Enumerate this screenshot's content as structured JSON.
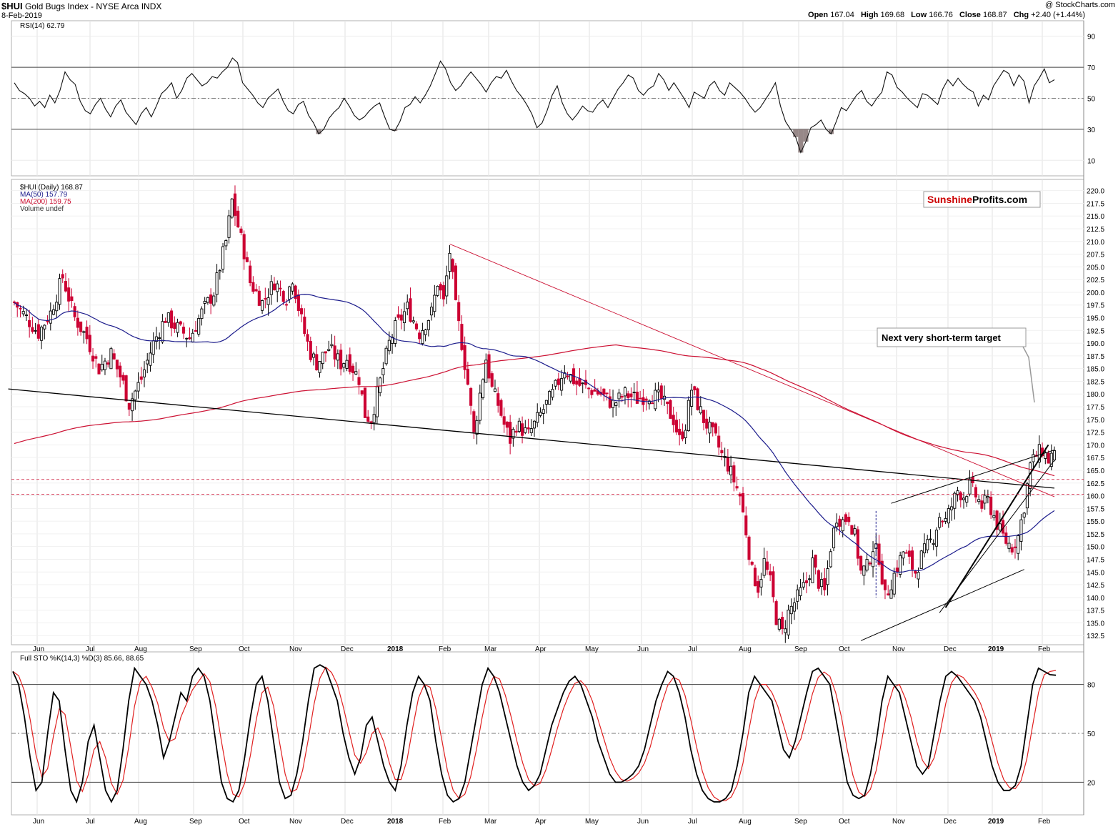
{
  "header": {
    "symbol": "$HUI",
    "name": "Gold Bugs Index - NYSE Arca INDX",
    "date": "8-Feb-2019",
    "credit": "@ StockCharts.com",
    "open_label": "Open",
    "open": "167.04",
    "high_label": "High",
    "high": "169.68",
    "low_label": "Low",
    "low": "166.76",
    "close_label": "Close",
    "close": "168.87",
    "chg_label": "Chg",
    "chg": "+2.40 (+1.44%)"
  },
  "brand": {
    "part1": "Sunshine",
    "part2": "Profits.com",
    "part1_color": "#cc0000"
  },
  "annotation": {
    "text": "Next very short-term target"
  },
  "colors": {
    "up": "#000000",
    "down": "#cc0033",
    "ma50": "#1c1c8c",
    "ma200": "#cc1133",
    "rsi_fill": "#8c7b7b",
    "sto_d": "#e02020"
  },
  "chart_data": [
    {
      "panel": "rsi",
      "type": "line",
      "title": "RSI(14) 62.79",
      "ylim": [
        0,
        100
      ],
      "yticks": [
        10,
        30,
        50,
        70,
        90
      ],
      "reference_lines": [
        30,
        50,
        70
      ],
      "last_value": 62.79,
      "x_start": "2017-05-15",
      "x_end": "2019-02-08",
      "values": [
        60,
        55,
        53,
        50,
        45,
        48,
        44,
        52,
        47,
        55,
        67,
        62,
        59,
        48,
        42,
        40,
        46,
        50,
        43,
        38,
        45,
        49,
        41,
        37,
        33,
        40,
        44,
        38,
        45,
        53,
        56,
        60,
        50,
        55,
        63,
        66,
        62,
        58,
        60,
        64,
        63,
        67,
        70,
        76,
        73,
        60,
        56,
        52,
        47,
        44,
        50,
        53,
        56,
        48,
        42,
        40,
        46,
        48,
        39,
        34,
        27,
        30,
        37,
        41,
        44,
        50,
        45,
        39,
        36,
        38,
        42,
        45,
        47,
        38,
        30,
        29,
        35,
        44,
        46,
        51,
        47,
        52,
        58,
        66,
        74,
        69,
        60,
        55,
        58,
        63,
        67,
        63,
        59,
        54,
        60,
        64,
        63,
        68,
        61,
        55,
        51,
        46,
        40,
        31,
        34,
        42,
        52,
        58,
        47,
        40,
        36,
        40,
        45,
        42,
        41,
        46,
        49,
        44,
        50,
        56,
        60,
        65,
        63,
        55,
        52,
        56,
        58,
        66,
        62,
        55,
        60,
        55,
        50,
        44,
        54,
        52,
        50,
        58,
        61,
        55,
        52,
        60,
        57,
        54,
        50,
        45,
        41,
        44,
        49,
        54,
        60,
        45,
        35,
        30,
        25,
        15,
        22,
        31,
        33,
        36,
        30,
        27,
        35,
        44,
        42,
        47,
        52,
        55,
        48,
        45,
        50,
        54,
        67,
        65,
        57,
        54,
        50,
        47,
        44,
        53,
        52,
        49,
        46,
        56,
        62,
        58,
        63,
        59,
        56,
        54,
        45,
        52,
        49,
        58,
        63,
        68,
        66,
        58,
        65,
        61,
        47,
        58,
        63,
        69,
        60,
        62
      ]
    },
    {
      "panel": "price",
      "type": "candlestick",
      "title": "$HUI (Daily) 168.87",
      "series": [
        {
          "name": "MA(50) 157.79",
          "color": "#1c1c8c",
          "last_value": 157.79
        },
        {
          "name": "MA(200) 159.75",
          "color": "#cc1133",
          "last_value": 159.75
        }
      ],
      "legend_extra": "Volume undef",
      "ylim": [
        130.7,
        222.2
      ],
      "yticks": [
        132.5,
        135.0,
        137.5,
        140.0,
        142.5,
        145.0,
        147.5,
        150.0,
        152.5,
        155.0,
        157.5,
        160.0,
        162.5,
        165.0,
        167.5,
        170.0,
        172.5,
        175.0,
        177.5,
        180.0,
        182.5,
        185.0,
        187.5,
        190.0,
        192.5,
        195.0,
        197.5,
        200.0,
        202.5,
        205.0,
        207.5,
        210.0,
        212.5,
        215.0,
        217.5,
        220.0
      ],
      "x_months": [
        "Jun",
        "Jul",
        "Aug",
        "Sep",
        "Oct",
        "Nov",
        "Dec",
        "2018",
        "Feb",
        "Mar",
        "Apr",
        "May",
        "Jun",
        "Jul",
        "Aug",
        "Sep",
        "Oct",
        "Nov",
        "Dec",
        "2019",
        "Feb"
      ],
      "close_anchors": [
        [
          0,
          198
        ],
        [
          4,
          195
        ],
        [
          8,
          192
        ],
        [
          12,
          196
        ],
        [
          16,
          203
        ],
        [
          20,
          195
        ],
        [
          24,
          191
        ],
        [
          28,
          185
        ],
        [
          32,
          188
        ],
        [
          36,
          182
        ],
        [
          38,
          178
        ],
        [
          42,
          183
        ],
        [
          46,
          190
        ],
        [
          50,
          195
        ],
        [
          54,
          193
        ],
        [
          58,
          191
        ],
        [
          62,
          196
        ],
        [
          66,
          200
        ],
        [
          68,
          205
        ],
        [
          70,
          210
        ],
        [
          72,
          218
        ],
        [
          74,
          213
        ],
        [
          76,
          208
        ],
        [
          78,
          202
        ],
        [
          82,
          198
        ],
        [
          86,
          202
        ],
        [
          90,
          199
        ],
        [
          92,
          203
        ],
        [
          94,
          197
        ],
        [
          96,
          192
        ],
        [
          98,
          188
        ],
        [
          100,
          186
        ],
        [
          104,
          189
        ],
        [
          108,
          186
        ],
        [
          110,
          187
        ],
        [
          114,
          183
        ],
        [
          116,
          176
        ],
        [
          118,
          175
        ],
        [
          120,
          180
        ],
        [
          122,
          185
        ],
        [
          124,
          190
        ],
        [
          126,
          193
        ],
        [
          130,
          197
        ],
        [
          134,
          192
        ],
        [
          138,
          196
        ],
        [
          140,
          202
        ],
        [
          142,
          198
        ],
        [
          144,
          208
        ],
        [
          146,
          197
        ],
        [
          148,
          190
        ],
        [
          150,
          182
        ],
        [
          152,
          172
        ],
        [
          154,
          180
        ],
        [
          156,
          187
        ],
        [
          158,
          181
        ],
        [
          160,
          178
        ],
        [
          162,
          174
        ],
        [
          164,
          171
        ],
        [
          166,
          174
        ],
        [
          170,
          172
        ],
        [
          174,
          176
        ],
        [
          178,
          180
        ],
        [
          182,
          185
        ],
        [
          186,
          182
        ],
        [
          190,
          181
        ],
        [
          194,
          180
        ],
        [
          198,
          178
        ],
        [
          202,
          180
        ],
        [
          206,
          179
        ],
        [
          210,
          180
        ],
        [
          214,
          179
        ],
        [
          216,
          177
        ],
        [
          218,
          175
        ],
        [
          220,
          171
        ],
        [
          222,
          174
        ],
        [
          224,
          181
        ],
        [
          226,
          178
        ],
        [
          228,
          175
        ],
        [
          230,
          173
        ],
        [
          232,
          171
        ],
        [
          234,
          168
        ],
        [
          236,
          166
        ],
        [
          238,
          163
        ],
        [
          240,
          160
        ],
        [
          242,
          153
        ],
        [
          244,
          145
        ],
        [
          246,
          142
        ],
        [
          248,
          147
        ],
        [
          250,
          143
        ],
        [
          252,
          136
        ],
        [
          254,
          133
        ],
        [
          256,
          137
        ],
        [
          258,
          139
        ],
        [
          260,
          141
        ],
        [
          262,
          143
        ],
        [
          264,
          147
        ],
        [
          266,
          143
        ],
        [
          268,
          141
        ],
        [
          270,
          150
        ],
        [
          272,
          156
        ],
        [
          274,
          155
        ],
        [
          276,
          156
        ],
        [
          278,
          152
        ],
        [
          280,
          145
        ],
        [
          282,
          146
        ],
        [
          284,
          150
        ],
        [
          286,
          148
        ],
        [
          288,
          140
        ],
        [
          290,
          143
        ],
        [
          292,
          146
        ],
        [
          294,
          149
        ],
        [
          296,
          147
        ],
        [
          298,
          145
        ],
        [
          300,
          148
        ],
        [
          302,
          150
        ],
        [
          304,
          152
        ],
        [
          306,
          156
        ],
        [
          308,
          155
        ],
        [
          310,
          158
        ],
        [
          312,
          161
        ],
        [
          314,
          160
        ],
        [
          316,
          162
        ],
        [
          318,
          160
        ],
        [
          320,
          158
        ],
        [
          322,
          159
        ],
        [
          324,
          156
        ],
        [
          326,
          153
        ],
        [
          328,
          151
        ],
        [
          330,
          150
        ],
        [
          332,
          152
        ],
        [
          334,
          158
        ],
        [
          336,
          166
        ],
        [
          338,
          168
        ],
        [
          340,
          169
        ],
        [
          342,
          167
        ],
        [
          344,
          168.87
        ]
      ]
    },
    {
      "panel": "stochastic",
      "type": "line",
      "title": "Full STO %K(14,3) %D(3) 85.66, 88.65",
      "ylim": [
        0,
        100
      ],
      "yticks": [
        20,
        50,
        80
      ],
      "reference_lines": [
        20,
        50,
        80
      ],
      "series": [
        {
          "name": "%K",
          "color": "#000000",
          "last_value": 85.66
        },
        {
          "name": "%D",
          "color": "#e02020",
          "last_value": 88.65
        }
      ],
      "values_k": [
        88,
        80,
        60,
        35,
        15,
        20,
        50,
        75,
        70,
        40,
        15,
        8,
        20,
        45,
        55,
        35,
        15,
        8,
        15,
        40,
        70,
        90,
        85,
        80,
        70,
        55,
        35,
        45,
        60,
        75,
        70,
        85,
        90,
        85,
        70,
        45,
        20,
        10,
        8,
        15,
        35,
        60,
        80,
        85,
        70,
        45,
        20,
        10,
        12,
        25,
        45,
        70,
        90,
        92,
        90,
        80,
        70,
        50,
        35,
        25,
        35,
        55,
        60,
        45,
        30,
        20,
        15,
        30,
        55,
        75,
        85,
        80,
        70,
        45,
        25,
        12,
        8,
        10,
        20,
        40,
        60,
        80,
        90,
        85,
        75,
        60,
        45,
        30,
        20,
        15,
        18,
        25,
        40,
        55,
        65,
        75,
        82,
        85,
        80,
        70,
        60,
        45,
        35,
        25,
        20,
        20,
        22,
        25,
        30,
        40,
        55,
        70,
        80,
        88,
        85,
        75,
        60,
        40,
        25,
        15,
        10,
        8,
        8,
        10,
        15,
        30,
        50,
        75,
        85,
        80,
        75,
        70,
        55,
        40,
        35,
        45,
        60,
        75,
        88,
        90,
        85,
        80,
        60,
        40,
        20,
        12,
        10,
        12,
        25,
        45,
        70,
        85,
        80,
        75,
        60,
        45,
        30,
        25,
        30,
        50,
        70,
        85,
        88,
        85,
        80,
        75,
        70,
        60,
        45,
        30,
        20,
        15,
        15,
        18,
        30,
        55,
        80,
        90,
        88,
        86,
        85.66
      ]
    }
  ]
}
